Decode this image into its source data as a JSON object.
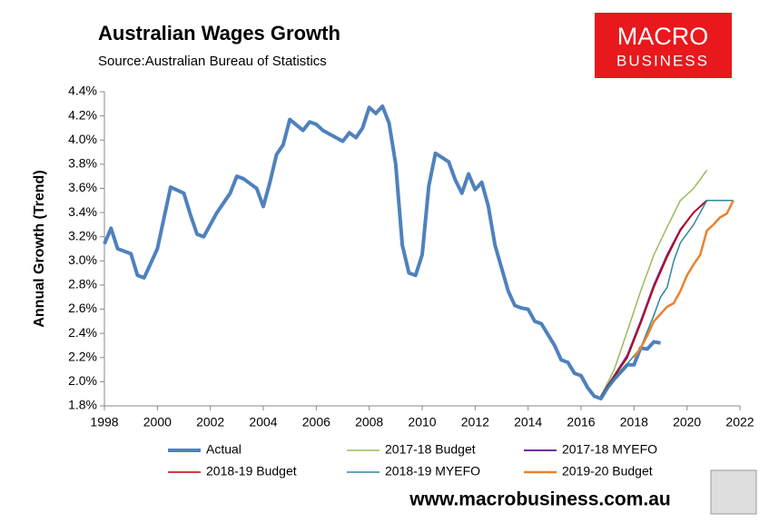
{
  "logo": {
    "line1": "MACRO",
    "line2": "BUSINESS"
  },
  "footer": "www.macrobusiness.com.au",
  "chart_data": {
    "type": "line",
    "title": "Australian Wages Growth",
    "subtitle": "Source:Australian Bureau of Statistics",
    "y_label": "Annual Growth (Trend)",
    "xlim": [
      1998,
      2022
    ],
    "xticks": [
      1998,
      2000,
      2002,
      2004,
      2006,
      2008,
      2010,
      2012,
      2014,
      2016,
      2018,
      2020,
      2022
    ],
    "ylim": [
      1.8,
      4.4
    ],
    "yticks": [
      {
        "value": 1.8,
        "label": "1.8%"
      },
      {
        "value": 2.0,
        "label": "2.0%"
      },
      {
        "value": 2.2,
        "label": "2.2%"
      },
      {
        "value": 2.4,
        "label": "2.4%"
      },
      {
        "value": 2.6,
        "label": "2.6%"
      },
      {
        "value": 2.8,
        "label": "2.8%"
      },
      {
        "value": 3.0,
        "label": "3.0%"
      },
      {
        "value": 3.2,
        "label": "3.2%"
      },
      {
        "value": 3.4,
        "label": "3.4%"
      },
      {
        "value": 3.6,
        "label": "3.6%"
      },
      {
        "value": 3.8,
        "label": "3.8%"
      },
      {
        "value": 4.0,
        "label": "4.0%"
      },
      {
        "value": 4.2,
        "label": "4.2%"
      },
      {
        "value": 4.4,
        "label": "4.4%"
      }
    ],
    "grid": false,
    "series": [
      {
        "name": "Actual",
        "color": "#4f81bd",
        "width": 4,
        "x": [
          1998.0,
          1998.25,
          1998.5,
          1999.0,
          1999.25,
          1999.5,
          2000.0,
          2000.5,
          2001.0,
          2001.25,
          2001.5,
          2001.75,
          2002.25,
          2002.75,
          2003.0,
          2003.25,
          2003.75,
          2004.0,
          2004.25,
          2004.5,
          2004.75,
          2005.0,
          2005.5,
          2005.75,
          2006.0,
          2006.25,
          2006.75,
          2007.0,
          2007.25,
          2007.5,
          2007.75,
          2008.0,
          2008.25,
          2008.5,
          2008.75,
          2009.0,
          2009.25,
          2009.5,
          2009.75,
          2010.0,
          2010.25,
          2010.5,
          2011.0,
          2011.25,
          2011.5,
          2011.75,
          2012.0,
          2012.25,
          2012.5,
          2012.75,
          2013.0,
          2013.25,
          2013.5,
          2013.75,
          2014.0,
          2014.25,
          2014.5,
          2014.75,
          2015.0,
          2015.25,
          2015.5,
          2015.75,
          2016.0,
          2016.25,
          2016.5,
          2016.75,
          2017.0,
          2017.25,
          2017.5,
          2017.75,
          2018.0,
          2018.25,
          2018.5,
          2018.75,
          2019.0
        ],
        "values": [
          3.14,
          3.27,
          3.1,
          3.06,
          2.88,
          2.86,
          3.1,
          3.61,
          3.56,
          3.38,
          3.22,
          3.2,
          3.4,
          3.56,
          3.7,
          3.68,
          3.6,
          3.45,
          3.65,
          3.88,
          3.96,
          4.17,
          4.08,
          4.15,
          4.13,
          4.08,
          4.02,
          3.99,
          4.06,
          4.02,
          4.1,
          4.27,
          4.22,
          4.28,
          4.14,
          3.8,
          3.13,
          2.9,
          2.88,
          3.05,
          3.62,
          3.89,
          3.82,
          3.67,
          3.56,
          3.72,
          3.59,
          3.65,
          3.45,
          3.13,
          2.94,
          2.75,
          2.63,
          2.61,
          2.6,
          2.5,
          2.48,
          2.39,
          2.3,
          2.18,
          2.16,
          2.07,
          2.05,
          1.95,
          1.88,
          1.86,
          1.95,
          2.02,
          2.08,
          2.14,
          2.14,
          2.28,
          2.27,
          2.33,
          2.32
        ]
      },
      {
        "name": "2017-18 Budget",
        "color": "#9bbb59",
        "width": 1.5,
        "x": [
          2016.75,
          2017.25,
          2017.75,
          2018.25,
          2018.75,
          2019.25,
          2019.75,
          2020.25,
          2020.75
        ],
        "values": [
          1.88,
          2.1,
          2.42,
          2.75,
          3.05,
          3.28,
          3.5,
          3.6,
          3.75
        ]
      },
      {
        "name": "2017-18 MYEFO",
        "color": "#7030a0",
        "width": 2,
        "x": [
          2016.75,
          2017.25,
          2017.75,
          2018.25,
          2018.75,
          2019.25,
          2019.75,
          2020.25,
          2020.75
        ],
        "values": [
          1.88,
          2.05,
          2.22,
          2.5,
          2.8,
          3.05,
          3.26,
          3.4,
          3.5
        ]
      },
      {
        "name": "2018-19 Budget",
        "color": "#c00000",
        "width": 1.5,
        "x": [
          2016.75,
          2017.25,
          2017.75,
          2018.25,
          2018.75,
          2019.25,
          2019.75,
          2020.25,
          2020.75
        ],
        "values": [
          1.88,
          2.04,
          2.2,
          2.48,
          2.78,
          3.03,
          3.25,
          3.4,
          3.5
        ]
      },
      {
        "name": "2018-19 MYEFO",
        "color": "#31859c",
        "width": 1.5,
        "x": [
          2016.75,
          2017.25,
          2017.75,
          2018.25,
          2018.75,
          2019.0,
          2019.25,
          2019.5,
          2019.75,
          2020.25,
          2020.75,
          2021.75
        ],
        "values": [
          1.88,
          2.03,
          2.15,
          2.28,
          2.55,
          2.7,
          2.78,
          3.0,
          3.15,
          3.3,
          3.5,
          3.5
        ]
      },
      {
        "name": "2019-20 Budget",
        "color": "#e9822e",
        "width": 2.5,
        "x": [
          2018.0,
          2018.25,
          2018.5,
          2018.75,
          2019.0,
          2019.25,
          2019.5,
          2019.75,
          2020.0,
          2020.25,
          2020.5,
          2020.75,
          2021.0,
          2021.25,
          2021.5,
          2021.75
        ],
        "values": [
          2.2,
          2.28,
          2.38,
          2.5,
          2.56,
          2.62,
          2.65,
          2.75,
          2.88,
          2.97,
          3.05,
          3.25,
          3.3,
          3.36,
          3.39,
          3.5
        ]
      }
    ]
  }
}
